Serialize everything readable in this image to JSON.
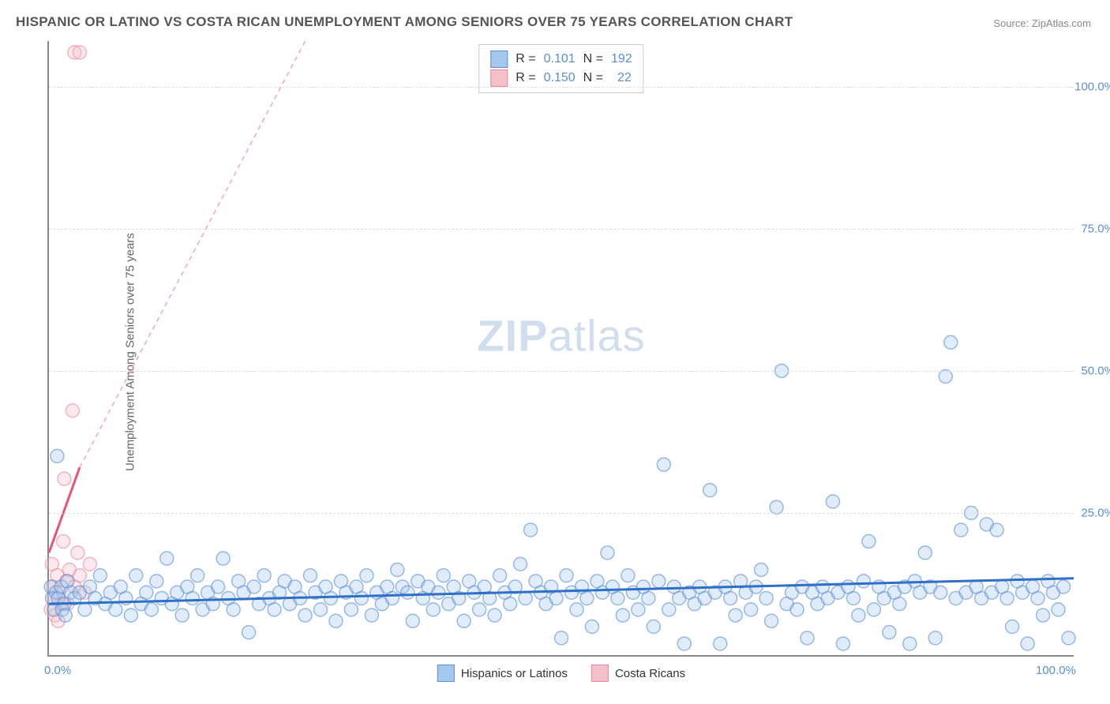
{
  "title": "HISPANIC OR LATINO VS COSTA RICAN UNEMPLOYMENT AMONG SENIORS OVER 75 YEARS CORRELATION CHART",
  "source_label": "Source:",
  "source_name": "ZipAtlas.com",
  "ylabel": "Unemployment Among Seniors over 75 years",
  "watermark_bold": "ZIP",
  "watermark_rest": "atlas",
  "chart": {
    "type": "scatter",
    "xlim": [
      0,
      100
    ],
    "ylim": [
      0,
      108
    ],
    "xtick_labels": [
      "0.0%",
      "100.0%"
    ],
    "xtick_positions": [
      0,
      100
    ],
    "ytick_labels": [
      "25.0%",
      "50.0%",
      "75.0%",
      "100.0%"
    ],
    "ytick_positions": [
      25.0,
      50.0,
      75.0,
      100.0
    ],
    "grid_color": "#dddddd",
    "background_color": "#ffffff",
    "axis_color": "#888888",
    "marker_radius": 8.5,
    "series": [
      {
        "name": "Hispanics or Latinos",
        "color_fill": "#a7c8ed",
        "color_stroke": "#5a8fd6",
        "R_label": "R =",
        "R_value": "0.101",
        "N_label": "N =",
        "N_value": "192",
        "trend": {
          "x1": 0,
          "y1": 9.0,
          "x2": 100,
          "y2": 13.5,
          "color": "#2e6fc9",
          "width": 3,
          "dash": "none"
        },
        "points": [
          [
            0.2,
            12
          ],
          [
            0.3,
            10
          ],
          [
            0.5,
            8
          ],
          [
            0.7,
            11
          ],
          [
            0.8,
            35
          ],
          [
            0.9,
            10
          ],
          [
            1.2,
            12
          ],
          [
            1.5,
            9
          ],
          [
            1.8,
            13
          ],
          [
            2.1,
            11
          ],
          [
            1.3,
            8
          ],
          [
            1.6,
            7
          ],
          [
            2.5,
            10
          ],
          [
            3,
            11
          ],
          [
            3.5,
            8
          ],
          [
            4,
            12
          ],
          [
            4.5,
            10
          ],
          [
            5,
            14
          ],
          [
            5.5,
            9
          ],
          [
            6,
            11
          ],
          [
            6.5,
            8
          ],
          [
            7,
            12
          ],
          [
            7.5,
            10
          ],
          [
            8,
            7
          ],
          [
            8.5,
            14
          ],
          [
            9,
            9
          ],
          [
            9.5,
            11
          ],
          [
            10,
            8
          ],
          [
            10.5,
            13
          ],
          [
            11,
            10
          ],
          [
            11.5,
            17
          ],
          [
            12,
            9
          ],
          [
            12.5,
            11
          ],
          [
            13,
            7
          ],
          [
            13.5,
            12
          ],
          [
            14,
            10
          ],
          [
            14.5,
            14
          ],
          [
            15,
            8
          ],
          [
            15.5,
            11
          ],
          [
            16,
            9
          ],
          [
            16.5,
            12
          ],
          [
            17,
            17
          ],
          [
            17.5,
            10
          ],
          [
            18,
            8
          ],
          [
            18.5,
            13
          ],
          [
            19,
            11
          ],
          [
            19.5,
            4
          ],
          [
            20,
            12
          ],
          [
            20.5,
            9
          ],
          [
            21,
            14
          ],
          [
            21.5,
            10
          ],
          [
            22,
            8
          ],
          [
            22.5,
            11
          ],
          [
            23,
            13
          ],
          [
            23.5,
            9
          ],
          [
            24,
            12
          ],
          [
            24.5,
            10
          ],
          [
            25,
            7
          ],
          [
            25.5,
            14
          ],
          [
            26,
            11
          ],
          [
            26.5,
            8
          ],
          [
            27,
            12
          ],
          [
            27.5,
            10
          ],
          [
            28,
            6
          ],
          [
            28.5,
            13
          ],
          [
            29,
            11
          ],
          [
            29.5,
            8
          ],
          [
            30,
            12
          ],
          [
            30.5,
            10
          ],
          [
            31,
            14
          ],
          [
            31.5,
            7
          ],
          [
            32,
            11
          ],
          [
            32.5,
            9
          ],
          [
            33,
            12
          ],
          [
            33.5,
            10
          ],
          [
            34,
            15
          ],
          [
            34.5,
            12
          ],
          [
            35,
            11
          ],
          [
            35.5,
            6
          ],
          [
            36,
            13
          ],
          [
            36.5,
            10
          ],
          [
            37,
            12
          ],
          [
            37.5,
            8
          ],
          [
            38,
            11
          ],
          [
            38.5,
            14
          ],
          [
            39,
            9
          ],
          [
            39.5,
            12
          ],
          [
            40,
            10
          ],
          [
            40.5,
            6
          ],
          [
            41,
            13
          ],
          [
            41.5,
            11
          ],
          [
            42,
            8
          ],
          [
            42.5,
            12
          ],
          [
            43,
            10
          ],
          [
            43.5,
            7
          ],
          [
            44,
            14
          ],
          [
            44.5,
            11
          ],
          [
            45,
            9
          ],
          [
            45.5,
            12
          ],
          [
            46,
            16
          ],
          [
            46.5,
            10
          ],
          [
            47,
            22
          ],
          [
            47.5,
            13
          ],
          [
            48,
            11
          ],
          [
            48.5,
            9
          ],
          [
            49,
            12
          ],
          [
            49.5,
            10
          ],
          [
            50,
            3
          ],
          [
            50.5,
            14
          ],
          [
            51,
            11
          ],
          [
            51.5,
            8
          ],
          [
            52,
            12
          ],
          [
            52.5,
            10
          ],
          [
            53,
            5
          ],
          [
            53.5,
            13
          ],
          [
            54,
            11
          ],
          [
            54.5,
            18
          ],
          [
            55,
            12
          ],
          [
            55.5,
            10
          ],
          [
            56,
            7
          ],
          [
            56.5,
            14
          ],
          [
            57,
            11
          ],
          [
            57.5,
            8
          ],
          [
            58,
            12
          ],
          [
            58.5,
            10
          ],
          [
            59,
            5
          ],
          [
            59.5,
            13
          ],
          [
            60,
            33.5
          ],
          [
            60.5,
            8
          ],
          [
            61,
            12
          ],
          [
            61.5,
            10
          ],
          [
            62,
            2
          ],
          [
            62.5,
            11
          ],
          [
            63,
            9
          ],
          [
            63.5,
            12
          ],
          [
            64,
            10
          ],
          [
            64.5,
            29
          ],
          [
            65,
            11
          ],
          [
            65.5,
            2
          ],
          [
            66,
            12
          ],
          [
            66.5,
            10
          ],
          [
            67,
            7
          ],
          [
            67.5,
            13
          ],
          [
            68,
            11
          ],
          [
            68.5,
            8
          ],
          [
            69,
            12
          ],
          [
            69.5,
            15
          ],
          [
            70,
            10
          ],
          [
            70.5,
            6
          ],
          [
            71,
            26
          ],
          [
            71.5,
            50
          ],
          [
            72,
            9
          ],
          [
            72.5,
            11
          ],
          [
            73,
            8
          ],
          [
            73.5,
            12
          ],
          [
            74,
            3
          ],
          [
            74.5,
            11
          ],
          [
            75,
            9
          ],
          [
            75.5,
            12
          ],
          [
            76,
            10
          ],
          [
            76.5,
            27
          ],
          [
            77,
            11
          ],
          [
            77.5,
            2
          ],
          [
            78,
            12
          ],
          [
            78.5,
            10
          ],
          [
            79,
            7
          ],
          [
            79.5,
            13
          ],
          [
            80,
            20
          ],
          [
            80.5,
            8
          ],
          [
            81,
            12
          ],
          [
            81.5,
            10
          ],
          [
            82,
            4
          ],
          [
            82.5,
            11
          ],
          [
            83,
            9
          ],
          [
            83.5,
            12
          ],
          [
            84,
            2
          ],
          [
            84.5,
            13
          ],
          [
            85,
            11
          ],
          [
            85.5,
            18
          ],
          [
            86,
            12
          ],
          [
            86.5,
            3
          ],
          [
            87,
            11
          ],
          [
            87.5,
            49
          ],
          [
            88,
            55
          ],
          [
            88.5,
            10
          ],
          [
            89,
            22
          ],
          [
            89.5,
            11
          ],
          [
            90,
            25
          ],
          [
            90.5,
            12
          ],
          [
            91,
            10
          ],
          [
            91.5,
            23
          ],
          [
            92,
            11
          ],
          [
            92.5,
            22
          ],
          [
            93,
            12
          ],
          [
            93.5,
            10
          ],
          [
            94,
            5
          ],
          [
            94.5,
            13
          ],
          [
            95,
            11
          ],
          [
            95.5,
            2
          ],
          [
            96,
            12
          ],
          [
            96.5,
            10
          ],
          [
            97,
            7
          ],
          [
            97.5,
            13
          ],
          [
            98,
            11
          ],
          [
            98.5,
            8
          ],
          [
            99,
            12
          ],
          [
            99.5,
            3
          ]
        ]
      },
      {
        "name": "Costa Ricans",
        "color_fill": "#f5c0ca",
        "color_stroke": "#e88a9e",
        "R_label": "R =",
        "R_value": "0.150",
        "N_label": "N =",
        "N_value": "22",
        "trend_solid": {
          "x1": 0,
          "y1": 18,
          "x2": 3,
          "y2": 33,
          "color": "#e8547a",
          "width": 3
        },
        "trend_dash": {
          "x1": 3,
          "y1": 33,
          "x2": 25,
          "y2": 108,
          "color": "#f0a7b6",
          "width": 1.5,
          "dash": "6,5"
        },
        "points": [
          [
            0.2,
            8
          ],
          [
            0.3,
            16
          ],
          [
            0.4,
            12
          ],
          [
            0.5,
            10
          ],
          [
            0.6,
            7
          ],
          [
            0.8,
            14
          ],
          [
            1.0,
            11
          ],
          [
            1.2,
            9
          ],
          [
            1.4,
            20
          ],
          [
            1.5,
            31
          ],
          [
            1.7,
            13
          ],
          [
            2.0,
            15
          ],
          [
            2.3,
            43
          ],
          [
            2.5,
            12
          ],
          [
            2.8,
            18
          ],
          [
            3.0,
            14
          ],
          [
            3.5,
            11
          ],
          [
            4.0,
            16
          ],
          [
            1.8,
            9
          ],
          [
            0.9,
            6
          ],
          [
            2.5,
            106
          ],
          [
            3.0,
            106
          ]
        ]
      }
    ]
  },
  "legend_bottom": [
    {
      "label": "Hispanics or Latinos",
      "fill": "#a7c8ed",
      "stroke": "#5a8fd6"
    },
    {
      "label": "Costa Ricans",
      "fill": "#f5c0ca",
      "stroke": "#e88a9e"
    }
  ]
}
